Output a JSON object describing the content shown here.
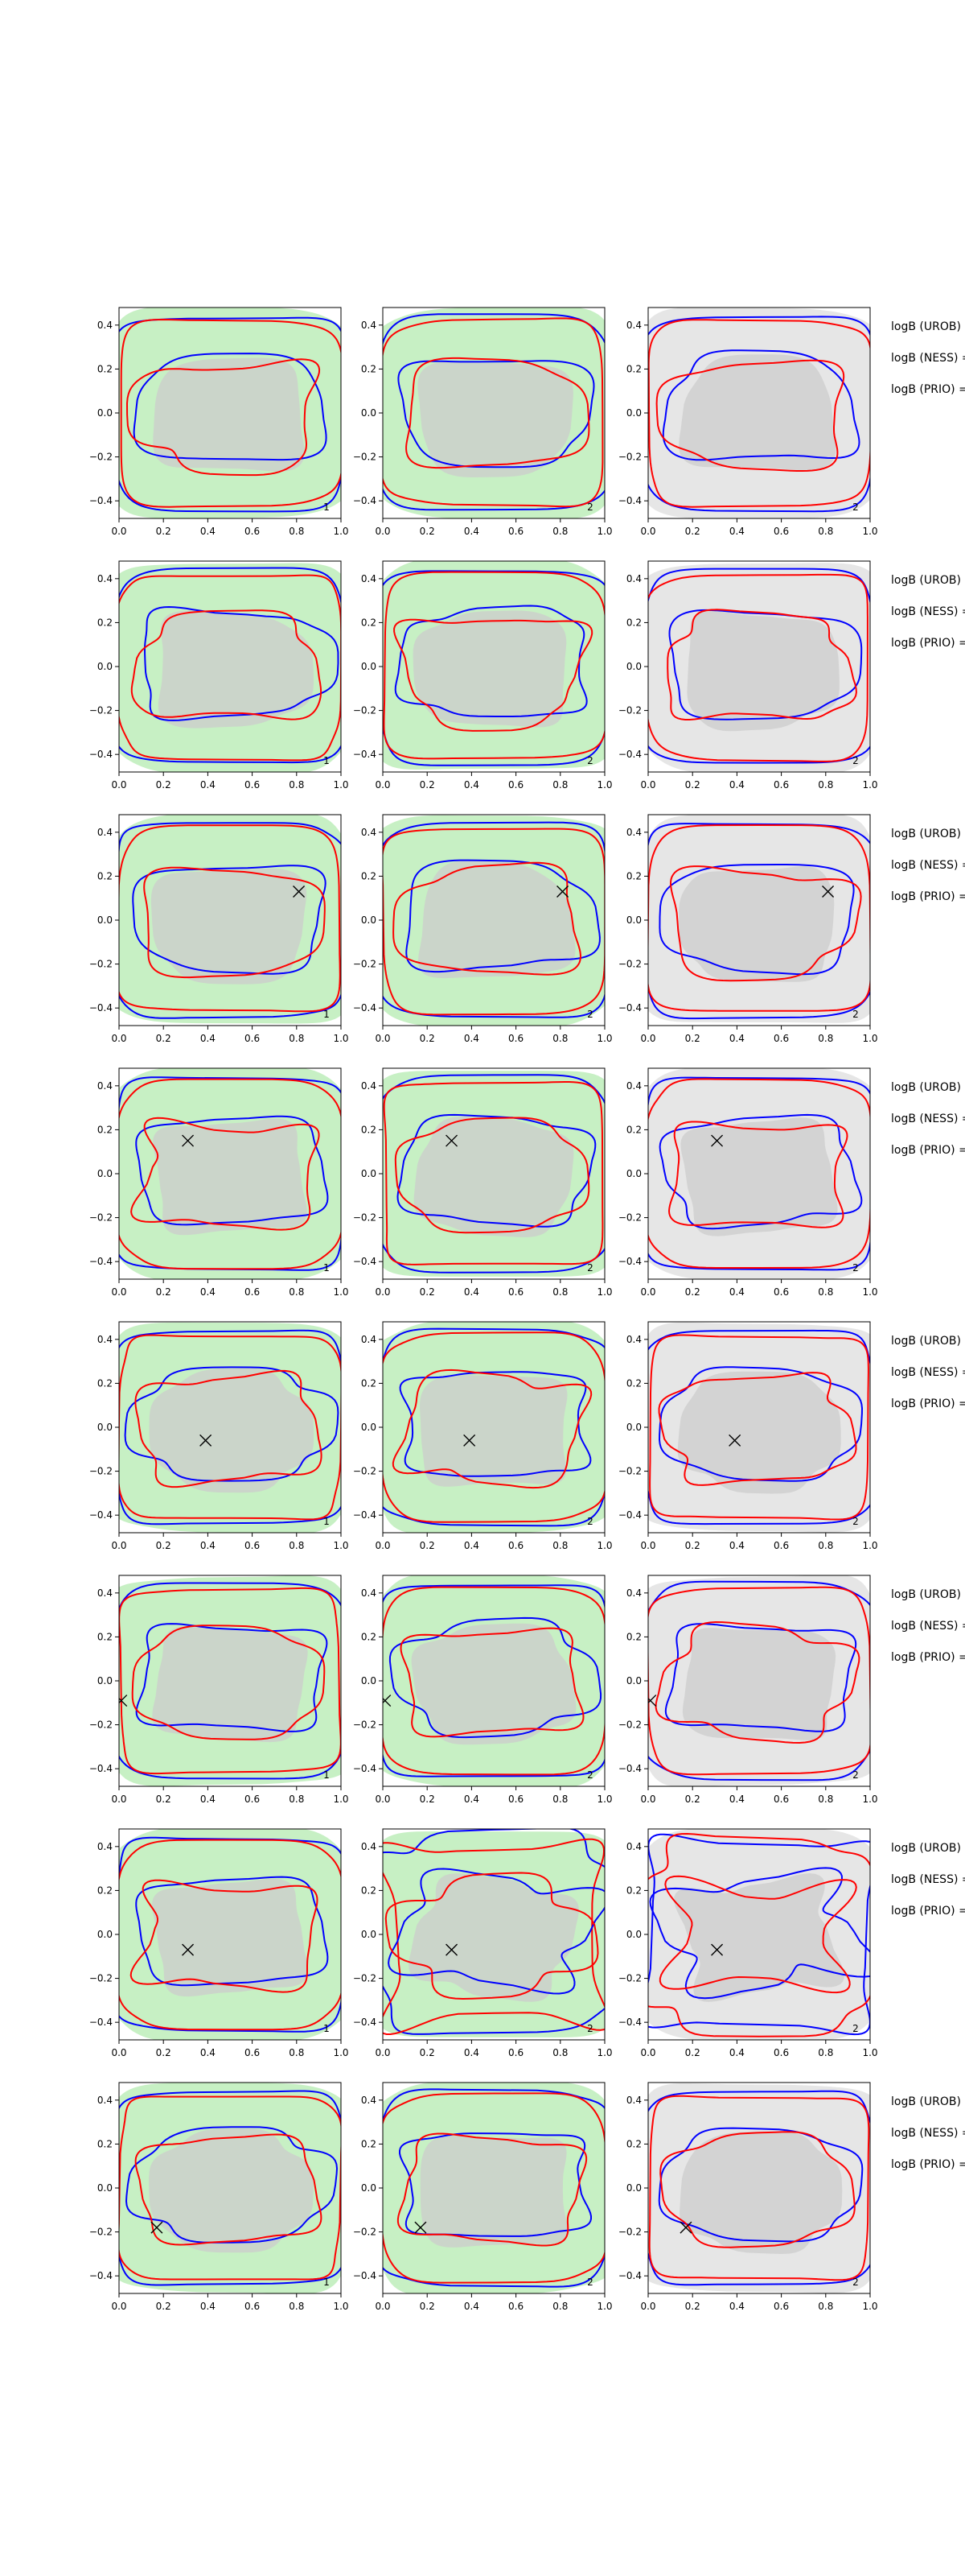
{
  "figure": {
    "grid": false,
    "colors": {
      "green_fill": "#c7f0c4",
      "grey_fill": "#e6e6e6",
      "inner_fill": "#cccccc",
      "red": "#ff0000",
      "blue": "#0000ff",
      "marker": "#000000"
    },
    "columns": [
      {
        "label": "1",
        "background": "green"
      },
      {
        "label": "2",
        "background": "green"
      },
      {
        "label": "2",
        "background": "grey"
      }
    ],
    "axes": {
      "xlim": [
        0.0,
        1.0
      ],
      "ylim": [
        -0.48,
        0.48
      ],
      "xticks": [
        "0.0",
        "0.2",
        "0.4",
        "0.6",
        "0.8",
        "1.0"
      ],
      "yticks": [
        "0.4",
        "0.2",
        "0.0",
        "−0.2",
        "−0.4"
      ]
    },
    "legend_labels": [
      "logB (UROB) =",
      "logB (NESS) =",
      "logB (PRIO) ="
    ]
  },
  "chart_data": [
    {
      "type": "contour",
      "row": 1,
      "marker": null
    },
    {
      "type": "contour",
      "row": 2,
      "marker": null
    },
    {
      "type": "contour",
      "row": 3,
      "marker": [
        0.81,
        0.13
      ]
    },
    {
      "type": "contour",
      "row": 4,
      "marker": [
        0.31,
        0.15
      ]
    },
    {
      "type": "contour",
      "row": 5,
      "marker": [
        0.39,
        -0.06
      ]
    },
    {
      "type": "contour",
      "row": 6,
      "marker": [
        0.01,
        -0.09
      ]
    },
    {
      "type": "contour",
      "row": 7,
      "marker": [
        0.31,
        -0.07
      ]
    },
    {
      "type": "contour",
      "row": 8,
      "marker": [
        0.17,
        -0.18
      ]
    }
  ]
}
